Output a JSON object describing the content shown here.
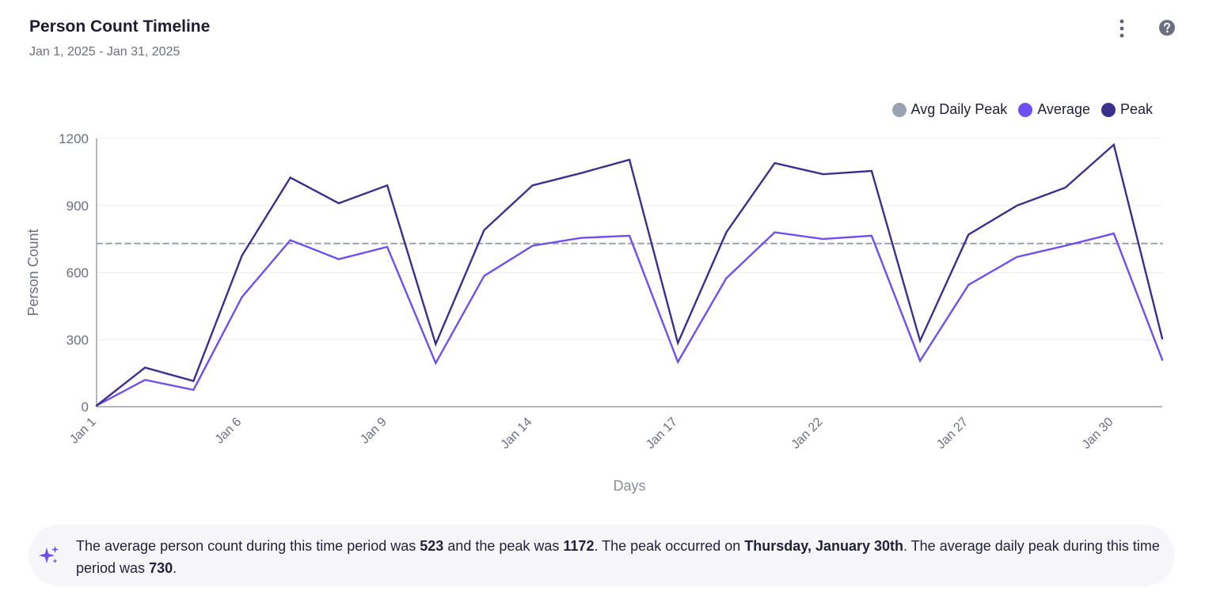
{
  "header": {
    "title": "Person Count Timeline",
    "subtitle": "Jan 1, 2025 - Jan 31, 2025",
    "menu_icon": "more-vertical-icon",
    "help_icon": "help-circle-icon"
  },
  "legend": {
    "items": [
      {
        "label": "Avg Daily Peak",
        "color": "#9aa3b2"
      },
      {
        "label": "Average",
        "color": "#6f4ff0"
      },
      {
        "label": "Peak",
        "color": "#3b2f8c"
      }
    ]
  },
  "colors": {
    "avg_daily_peak": "#9aa3b2",
    "average": "#6f4ff0",
    "peak": "#3b2f8c",
    "axis": "#6b6f80",
    "grid": "#ececf2",
    "insight_bg": "#f6f6fa",
    "sparkle": "#6f4ff0"
  },
  "chart_data": {
    "type": "line",
    "xlabel": "Days",
    "ylabel": "Person Count",
    "ylim": [
      0,
      1200
    ],
    "yticks": [
      0,
      300,
      600,
      900,
      1200
    ],
    "grid": true,
    "legend_position": "top-right",
    "x": [
      "Jan 1",
      "Jan 2",
      "Jan 3",
      "Jan 6",
      "Jan 7",
      "Jan 8",
      "Jan 9",
      "Jan 10",
      "Jan 13",
      "Jan 14",
      "Jan 15",
      "Jan 16",
      "Jan 17",
      "Jan 20",
      "Jan 21",
      "Jan 22",
      "Jan 23",
      "Jan 24",
      "Jan 27",
      "Jan 28",
      "Jan 29",
      "Jan 30",
      "Jan 31"
    ],
    "xtick_labels": [
      "Jan 1",
      "Jan 6",
      "Jan 9",
      "Jan 14",
      "Jan 17",
      "Jan 22",
      "Jan 27",
      "Jan 30"
    ],
    "series": [
      {
        "name": "Average",
        "values": [
          5,
          120,
          75,
          490,
          745,
          660,
          715,
          195,
          585,
          720,
          755,
          765,
          200,
          575,
          780,
          750,
          765,
          205,
          545,
          670,
          720,
          775,
          210
        ]
      },
      {
        "name": "Peak",
        "values": [
          5,
          175,
          115,
          675,
          1025,
          910,
          990,
          280,
          790,
          990,
          1045,
          1105,
          285,
          780,
          1090,
          1040,
          1055,
          295,
          770,
          900,
          980,
          1172,
          305
        ]
      },
      {
        "name": "Avg Daily Peak",
        "values": [
          730,
          730,
          730,
          730,
          730,
          730,
          730,
          730,
          730,
          730,
          730,
          730,
          730,
          730,
          730,
          730,
          730,
          730,
          730,
          730,
          730,
          730,
          730
        ]
      }
    ]
  },
  "insight": {
    "icon": "sparkles-icon",
    "t1": "The average person count during this time period was ",
    "avg_value": "523",
    "t2": " and the peak was ",
    "peak_value": "1172",
    "t3": ". The peak occurred on ",
    "peak_day": "Thursday, January 30th",
    "t4": ". The average daily peak during this time period was ",
    "avg_daily_peak_value": "730",
    "t5": "."
  }
}
